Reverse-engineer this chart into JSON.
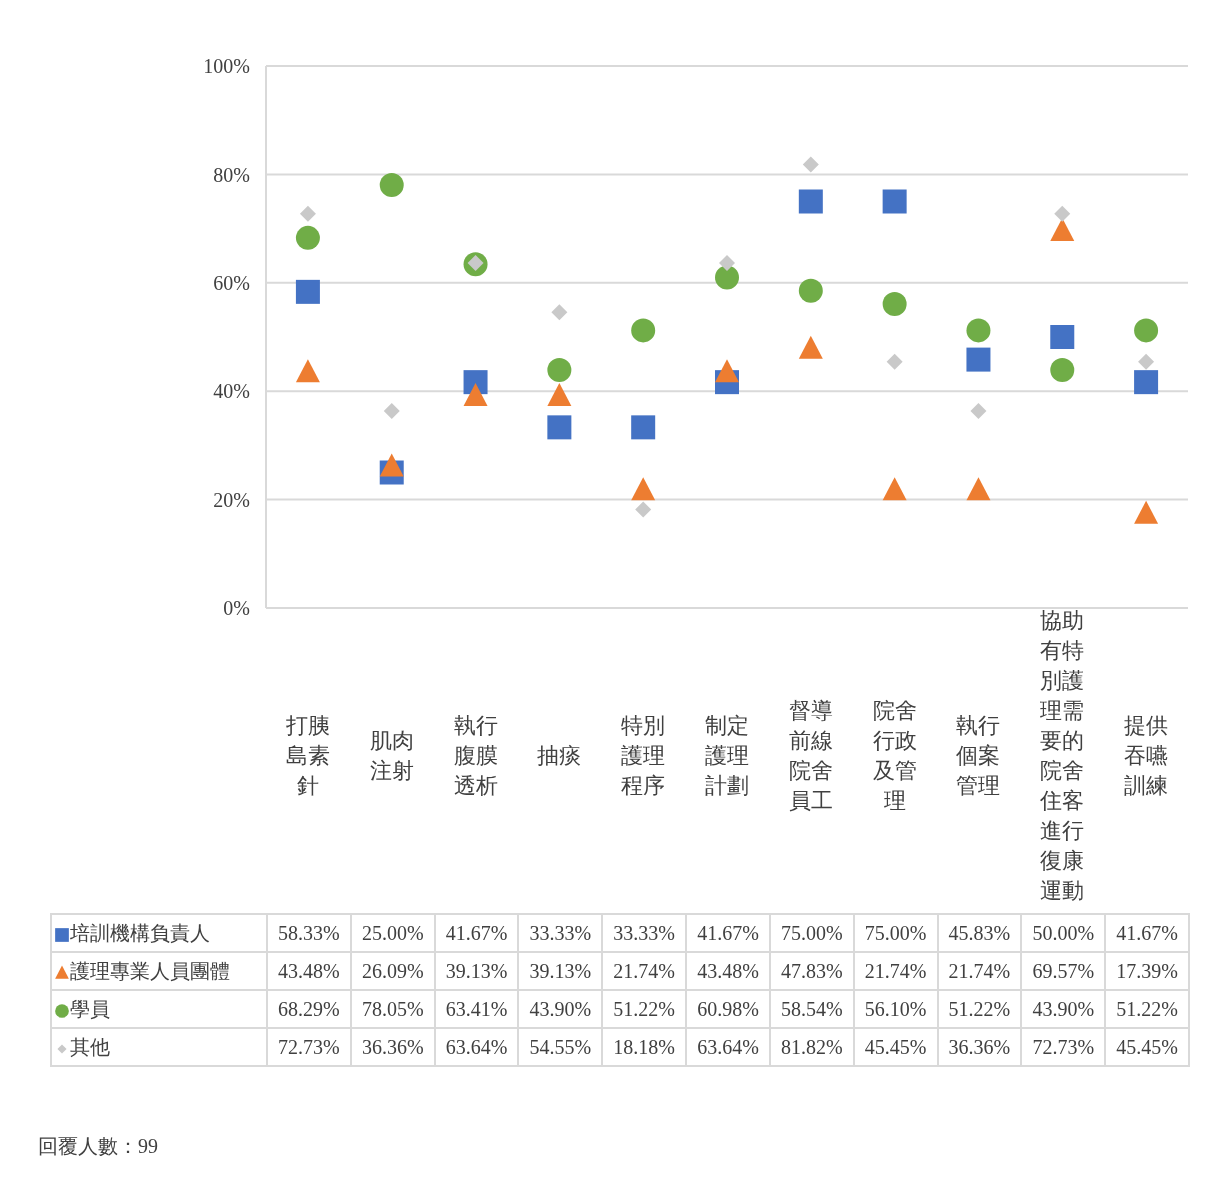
{
  "chart_data": {
    "type": "scatter",
    "categories": [
      "打胰島素針",
      "肌肉注射",
      "執行腹膜透析",
      "抽痰",
      "特別護理程序",
      "制定護理計劃",
      "督導前線院舍員工",
      "院舍行政及管理",
      "執行個案管理",
      "協助有特別護理需要的院舍住客進行復康運動",
      "提供吞嚥訓練"
    ],
    "series": [
      {
        "name": "培訓機構負責人",
        "color": "#4472c4",
        "marker": "square",
        "values": [
          58.33,
          25.0,
          41.67,
          33.33,
          33.33,
          41.67,
          75.0,
          75.0,
          45.83,
          50.0,
          41.67
        ],
        "value_labels": [
          "58.33%",
          "25.00%",
          "41.67%",
          "33.33%",
          "33.33%",
          "41.67%",
          "75.00%",
          "75.00%",
          "45.83%",
          "50.00%",
          "41.67%"
        ]
      },
      {
        "name": "護理專業人員團體",
        "color": "#ed7d31",
        "marker": "triangle",
        "values": [
          43.48,
          26.09,
          39.13,
          39.13,
          21.74,
          43.48,
          47.83,
          21.74,
          21.74,
          69.57,
          17.39
        ],
        "value_labels": [
          "43.48%",
          "26.09%",
          "39.13%",
          "39.13%",
          "21.74%",
          "43.48%",
          "47.83%",
          "21.74%",
          "21.74%",
          "69.57%",
          "17.39%"
        ]
      },
      {
        "name": "學員",
        "color": "#70ad47",
        "marker": "circle",
        "values": [
          68.29,
          78.05,
          63.41,
          43.9,
          51.22,
          60.98,
          58.54,
          56.1,
          51.22,
          43.9,
          51.22
        ],
        "value_labels": [
          "68.29%",
          "78.05%",
          "63.41%",
          "43.90%",
          "51.22%",
          "60.98%",
          "58.54%",
          "56.10%",
          "51.22%",
          "43.90%",
          "51.22%"
        ]
      },
      {
        "name": "其他",
        "color": "#c9c9c9",
        "marker": "diamond",
        "values": [
          72.73,
          36.36,
          63.64,
          54.55,
          18.18,
          63.64,
          81.82,
          45.45,
          36.36,
          72.73,
          45.45
        ],
        "value_labels": [
          "72.73%",
          "36.36%",
          "63.64%",
          "54.55%",
          "18.18%",
          "63.64%",
          "81.82%",
          "45.45%",
          "36.36%",
          "72.73%",
          "45.45%"
        ]
      }
    ],
    "ylim": [
      0,
      100
    ],
    "yticks": [
      {
        "value": 0,
        "label": "0%"
      },
      {
        "value": 20,
        "label": "20%"
      },
      {
        "value": 40,
        "label": "40%"
      },
      {
        "value": 60,
        "label": "60%"
      },
      {
        "value": 80,
        "label": "80%"
      },
      {
        "value": 100,
        "label": "100%"
      }
    ],
    "grid": "y",
    "legend": "bottom",
    "annotations": [
      "回覆人數：99"
    ]
  }
}
